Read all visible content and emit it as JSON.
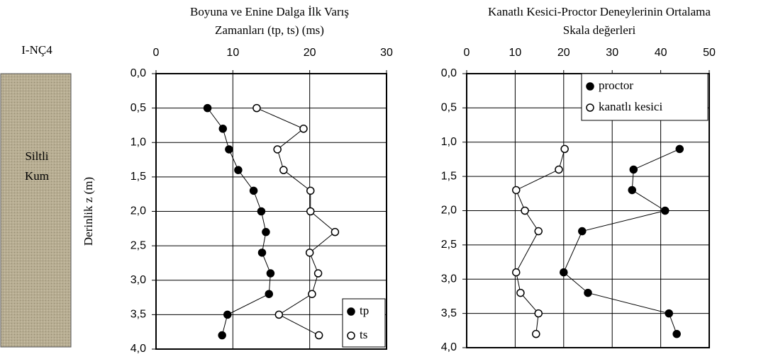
{
  "soil_column": {
    "label": "I-NÇ4",
    "layer": [
      "Siltli",
      "Kum"
    ]
  },
  "chart_data": [
    {
      "type": "scatter",
      "title": [
        "Boyuna ve Enine Dalga İlk Varış",
        "Zamanları (tp, ts) (ms)"
      ],
      "y_label": "Derinlik z (m)",
      "xlim": [
        0,
        30
      ],
      "xticks": [
        0,
        10,
        20,
        30
      ],
      "ylim": [
        0,
        4
      ],
      "y_inverted": true,
      "yticks": [
        {
          "value": 0,
          "label": "0,0"
        },
        {
          "value": 0.5,
          "label": "0,5"
        },
        {
          "value": 1,
          "label": "1,0"
        },
        {
          "value": 1.5,
          "label": "1,5"
        },
        {
          "value": 2,
          "label": "2,0"
        },
        {
          "value": 2.5,
          "label": "2,5"
        },
        {
          "value": 3,
          "label": "3,0"
        },
        {
          "value": 3.5,
          "label": "3,5"
        },
        {
          "value": 4,
          "label": "4,0"
        }
      ],
      "grid": true,
      "legend": "lower right",
      "series": [
        {
          "name": "tp",
          "color": "#000000",
          "marker_fill": "#000000",
          "x": [
            6.7,
            8.7,
            9.5,
            10.7,
            12.7,
            13.7,
            14.3,
            13.8,
            14.9,
            14.7,
            9.3,
            8.6
          ],
          "y": [
            0.5,
            0.8,
            1.1,
            1.4,
            1.7,
            2.0,
            2.3,
            2.6,
            2.9,
            3.2,
            3.5,
            3.8
          ]
        },
        {
          "name": "ts",
          "color": "#000000",
          "marker_fill": "#ffffff",
          "x": [
            13.1,
            19.2,
            15.8,
            16.6,
            20.1,
            20.1,
            23.3,
            20.0,
            21.1,
            20.3,
            16.0,
            21.2
          ],
          "y": [
            0.5,
            0.8,
            1.1,
            1.4,
            1.7,
            2.0,
            2.3,
            2.6,
            2.9,
            3.2,
            3.5,
            3.8
          ]
        }
      ]
    },
    {
      "type": "scatter",
      "title": [
        "Kanatlı Kesici-Proctor Deneylerinin Ortalama",
        "Skala değerleri"
      ],
      "xlim": [
        0,
        50
      ],
      "xticks": [
        0,
        10,
        20,
        30,
        40,
        50
      ],
      "ylim": [
        0,
        4
      ],
      "y_inverted": true,
      "yticks": [
        {
          "value": 0,
          "label": "0,0"
        },
        {
          "value": 0.5,
          "label": "0,5"
        },
        {
          "value": 1,
          "label": "1,0"
        },
        {
          "value": 1.5,
          "label": "1,5"
        },
        {
          "value": 2,
          "label": "2,0"
        },
        {
          "value": 2.5,
          "label": "2,5"
        },
        {
          "value": 3,
          "label": "3,0"
        },
        {
          "value": 3.5,
          "label": "3,5"
        },
        {
          "value": 4,
          "label": "4,0"
        }
      ],
      "grid": true,
      "legend": "upper right",
      "series": [
        {
          "name": "proctor",
          "color": "#000000",
          "marker_fill": "#000000",
          "x": [
            43.9,
            34.4,
            34.1,
            40.9,
            23.8,
            20.0,
            25.0,
            41.7,
            43.3
          ],
          "y": [
            1.1,
            1.4,
            1.7,
            2.0,
            2.3,
            2.9,
            3.2,
            3.5,
            3.8
          ]
        },
        {
          "name": "kanatlı kesici",
          "color": "#000000",
          "marker_fill": "#ffffff",
          "x": [
            20.2,
            19.0,
            10.2,
            12.0,
            14.8,
            10.2,
            11.1,
            14.8,
            14.3
          ],
          "y": [
            1.1,
            1.4,
            1.7,
            2.0,
            2.3,
            2.9,
            3.2,
            3.5,
            3.8
          ]
        }
      ]
    }
  ]
}
